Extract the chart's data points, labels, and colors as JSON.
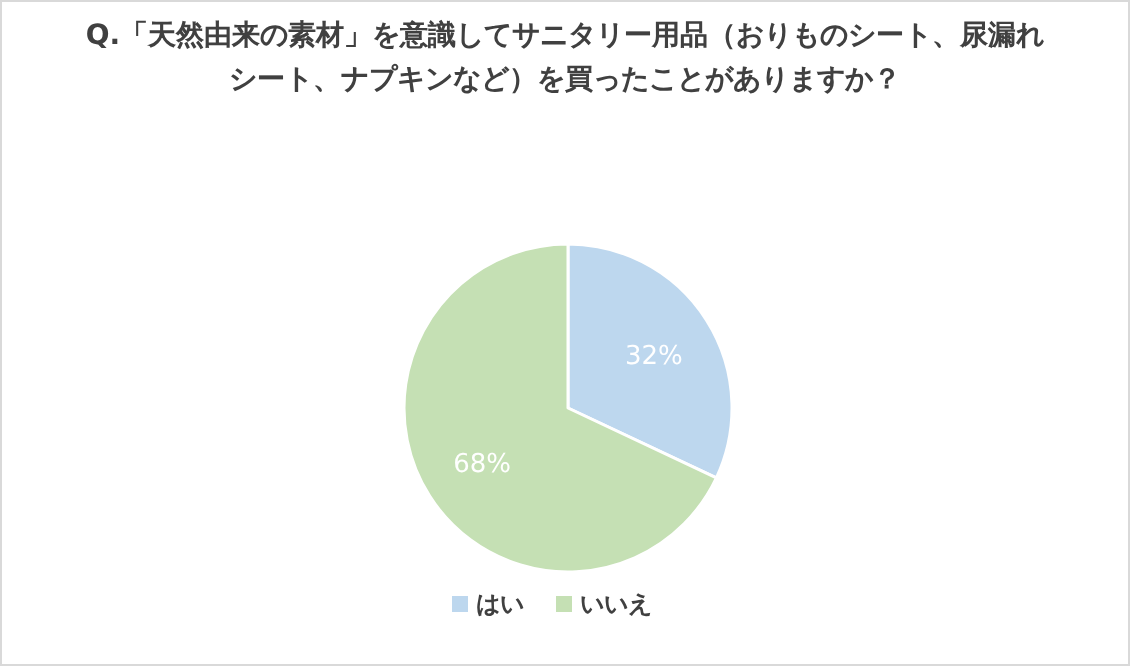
{
  "chart_data": {
    "type": "pie",
    "title": "Q.「天然由来の素材」を意識してサニタリー用品（おりものシート、尿漏れシート、ナプキンなど）を買ったことがありますか？",
    "categories": [
      "はい",
      "いいえ"
    ],
    "values": [
      32,
      68
    ],
    "colors": [
      "#bdd7ee",
      "#c5e0b4"
    ],
    "value_labels": [
      "32%",
      "68%"
    ],
    "legend": "bottom"
  }
}
